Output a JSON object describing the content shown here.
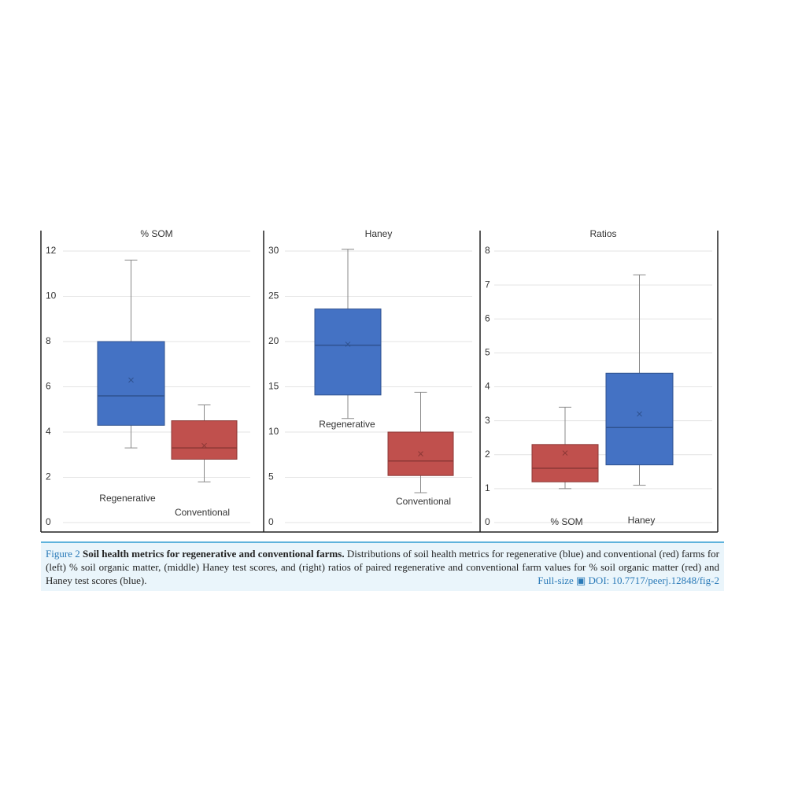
{
  "chart_data": [
    {
      "type": "box",
      "title": "% SOM",
      "ylim": [
        0,
        12
      ],
      "yticks": [
        0,
        2,
        4,
        6,
        8,
        10,
        12
      ],
      "grid": true,
      "series": [
        {
          "name": "Regenerative",
          "color": "#4472c4",
          "min": 3.3,
          "q1": 4.3,
          "median": 5.6,
          "q3": 8.0,
          "max": 11.6,
          "mean": 6.3
        },
        {
          "name": "Conventional",
          "color": "#c0504d",
          "min": 1.8,
          "q1": 2.8,
          "median": 3.3,
          "q3": 4.5,
          "max": 5.2,
          "mean": 3.4
        }
      ]
    },
    {
      "type": "box",
      "title": "Haney",
      "ylim": [
        0,
        30
      ],
      "yticks": [
        0,
        5,
        10,
        15,
        20,
        25,
        30
      ],
      "grid": true,
      "series": [
        {
          "name": "Regenerative",
          "color": "#4472c4",
          "min": 11.5,
          "q1": 14.1,
          "median": 19.6,
          "q3": 23.6,
          "max": 30.2,
          "mean": 19.7
        },
        {
          "name": "Conventional",
          "color": "#c0504d",
          "min": 3.3,
          "q1": 5.2,
          "median": 6.8,
          "q3": 10.0,
          "max": 14.4,
          "mean": 7.6
        }
      ]
    },
    {
      "type": "box",
      "title": "Ratios",
      "ylim": [
        0,
        8
      ],
      "yticks": [
        0,
        1,
        2,
        3,
        4,
        5,
        6,
        7,
        8
      ],
      "grid": true,
      "series": [
        {
          "name": "% SOM",
          "color": "#c0504d",
          "min": 1.0,
          "q1": 1.2,
          "median": 1.6,
          "q3": 2.3,
          "max": 3.4,
          "mean": 2.05
        },
        {
          "name": "Haney",
          "color": "#4472c4",
          "min": 1.1,
          "q1": 1.7,
          "median": 2.8,
          "q3": 4.4,
          "max": 7.3,
          "mean": 3.2
        }
      ]
    }
  ],
  "caption": {
    "label": "Figure 2",
    "title": "Soil health metrics for regenerative and conventional farms.",
    "text": "Distributions of soil health metrics for regenerative (blue) and conventional (red) farms for (left) % soil organic matter, (middle) Haney test scores, and (right) ratios of paired regenerative and conventional farm values for % soil organic matter (red) and Haney test scores (blue).",
    "link": "Full-size",
    "doi": "DOI: 10.7717/peerj.12848/fig-2"
  }
}
